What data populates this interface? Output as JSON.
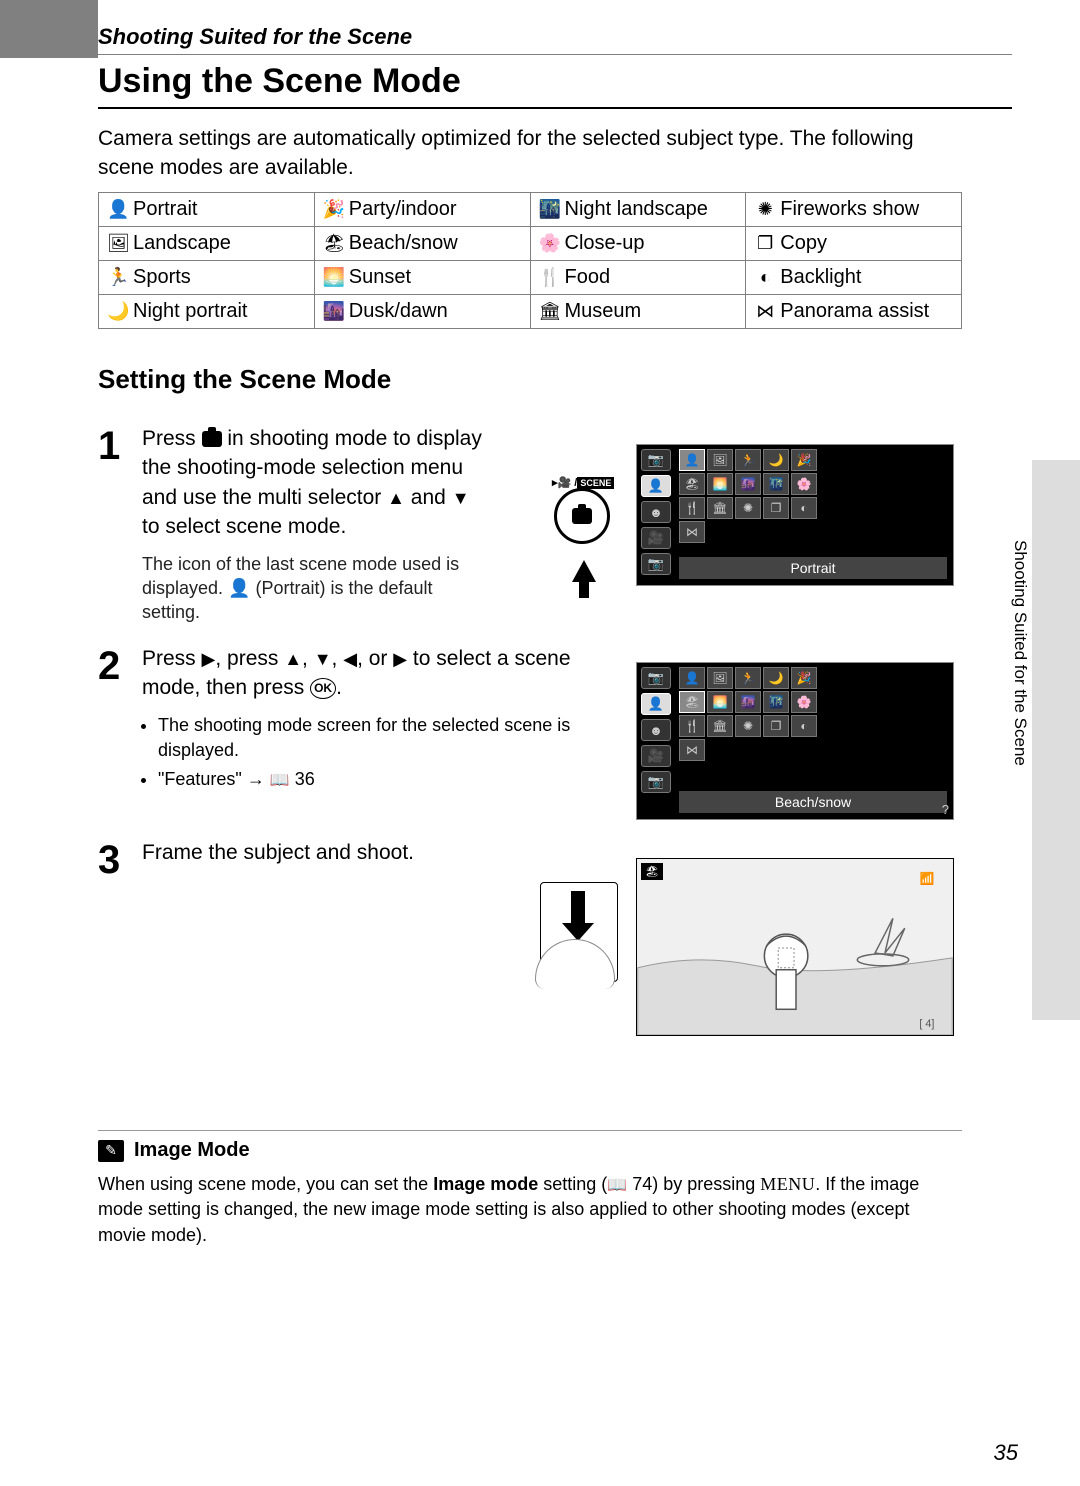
{
  "header": {
    "section": "Shooting Suited for the Scene",
    "title": "Using the Scene Mode"
  },
  "intro": "Camera settings are automatically optimized for the selected subject type. The following scene modes are available.",
  "scene_table": {
    "rows": [
      [
        {
          "icon": "👤",
          "label": "Portrait"
        },
        {
          "icon": "🎉",
          "label": "Party/indoor"
        },
        {
          "icon": "🌃",
          "label": "Night landscape"
        },
        {
          "icon": "✺",
          "label": "Fireworks show"
        }
      ],
      [
        {
          "icon": "🖼",
          "label": "Landscape"
        },
        {
          "icon": "🏖",
          "label": "Beach/snow"
        },
        {
          "icon": "🌸",
          "label": "Close-up"
        },
        {
          "icon": "❐",
          "label": "Copy"
        }
      ],
      [
        {
          "icon": "🏃",
          "label": "Sports"
        },
        {
          "icon": "🌅",
          "label": "Sunset"
        },
        {
          "icon": "🍴",
          "label": "Food"
        },
        {
          "icon": "◐",
          "label": "Backlight"
        }
      ],
      [
        {
          "icon": "🌙",
          "label": "Night portrait"
        },
        {
          "icon": "🌆",
          "label": "Dusk/dawn"
        },
        {
          "icon": "🏛",
          "label": "Museum"
        },
        {
          "icon": "⋈",
          "label": "Panorama assist"
        }
      ]
    ]
  },
  "subheading": "Setting the Scene Mode",
  "steps": {
    "s1": {
      "num": "1",
      "text_before": "Press ",
      "text_after": " in shooting mode to display the shooting-mode selection menu and use the multi selector ",
      "text_end": " to select scene mode.",
      "and": " and ",
      "note": "The icon of the last scene mode used is displayed. ",
      "note_end": " (Portrait) is the default setting."
    },
    "s2": {
      "num": "2",
      "text_a": "Press ",
      "text_b": ", press ",
      "text_c": ", or ",
      "text_d": " to select a scene mode, then press ",
      "text_e": ".",
      "sep": ", ",
      "bullet1": "The shooting mode screen for the selected scene is displayed.",
      "bullet2_a": "\"Features\" → ",
      "bullet2_pg": " 36"
    },
    "s3": {
      "num": "3",
      "text": "Frame the subject and shoot."
    }
  },
  "menu1": {
    "caption": "Portrait",
    "dial_label_a": "▸🎥 /",
    "dial_label_b": "SCENE"
  },
  "menu2": {
    "caption": "Beach/snow"
  },
  "side_tab": "Shooting Suited for the Scene",
  "note": {
    "heading": "Image Mode",
    "body_a": "When using scene mode, you can set the ",
    "body_bold": "Image mode",
    "body_b": " setting (",
    "body_pg": " 74) by pressing ",
    "body_menu": "MENU",
    "body_c": ". If the image mode setting is changed, the new image mode setting is also applied to other shooting modes (except movie mode)."
  },
  "page_number": "35",
  "colors": {
    "grey": "#808080",
    "panel_bg": "#000000",
    "panel_cell": "#444444",
    "panel_border": "#777777",
    "side_tab": "#dddddd"
  }
}
